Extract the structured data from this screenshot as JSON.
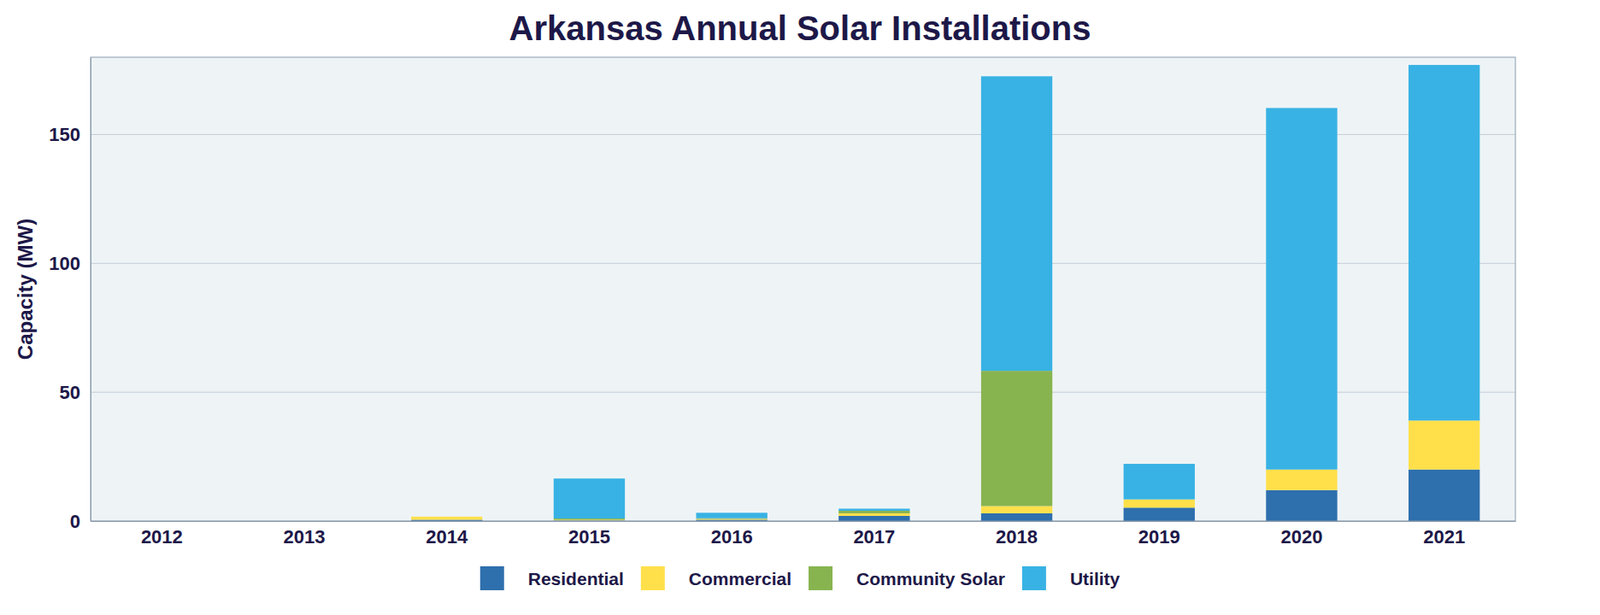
{
  "chart_data": {
    "type": "bar",
    "title": "Arkansas Annual Solar Installations",
    "y_label": "Capacity (MW)",
    "categories": [
      "2012",
      "2013",
      "2014",
      "2015",
      "2016",
      "2017",
      "2018",
      "2019",
      "2020",
      "2021"
    ],
    "series": [
      {
        "name": "Residential",
        "color": "#2e6fad",
        "values": [
          0,
          0,
          0.5,
          0.2,
          0.5,
          2,
          3,
          5.2,
          12,
          20
        ]
      },
      {
        "name": "Commercial",
        "color": "#ffe04b",
        "values": [
          0,
          0,
          1.2,
          0.3,
          0.3,
          1,
          2.8,
          3.2,
          8,
          19
        ]
      },
      {
        "name": "Community Solar",
        "color": "#88b450",
        "values": [
          0,
          0,
          0,
          0.5,
          0.3,
          1,
          52.5,
          0,
          0,
          0
        ]
      },
      {
        "name": "Utility",
        "color": "#38b2e4",
        "values": [
          0,
          0,
          0,
          15.5,
          2.1,
          0.8,
          114.3,
          13.8,
          140.3,
          138
        ]
      }
    ],
    "stacked": true,
    "grid": true,
    "legend": "bottom",
    "ylim": [
      0,
      180
    ],
    "yticks": [
      0,
      50,
      100,
      150
    ]
  }
}
